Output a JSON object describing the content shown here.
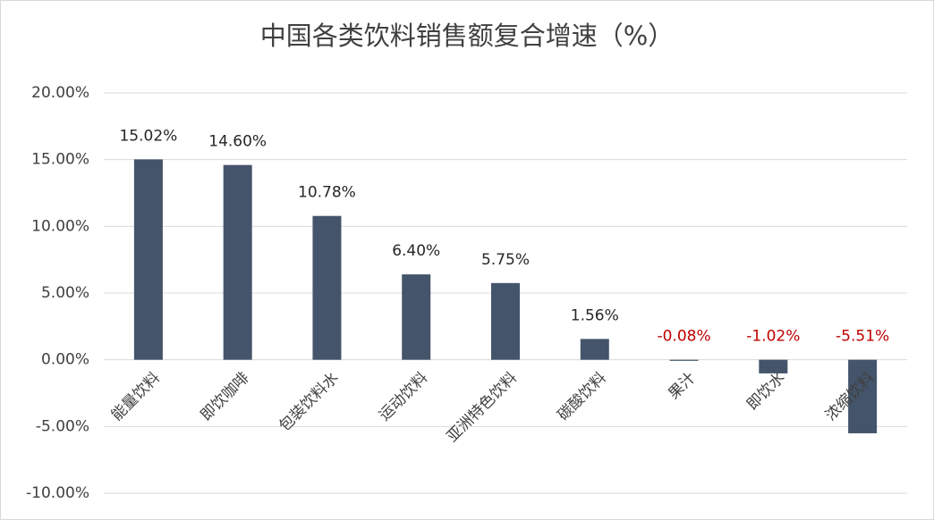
{
  "chart_data": {
    "type": "bar",
    "title": "中国各类饮料销售额复合增速（%）",
    "categories": [
      "能量饮料",
      "即饮咖啡",
      "包装饮料水",
      "运动饮料",
      "亚洲特色饮料",
      "碳酸饮料",
      "果汁",
      "即饮水",
      "浓缩饮料"
    ],
    "values": [
      15.02,
      14.6,
      10.78,
      6.4,
      5.75,
      1.56,
      -0.08,
      -1.02,
      -5.51
    ],
    "value_labels": [
      "15.02%",
      "14.60%",
      "10.78%",
      "6.40%",
      "5.75%",
      "1.56%",
      "-0.08%",
      "-1.02%",
      "-5.51%"
    ],
    "color": "#44546a",
    "label_color": "#262626",
    "negative_label_color": "#c00000",
    "ylim": [
      -10,
      20
    ],
    "yticks": [
      {
        "value": -10,
        "label": "-10.00%"
      },
      {
        "value": -5,
        "label": "-5.00%"
      },
      {
        "value": 0,
        "label": "0.00%"
      },
      {
        "value": 5,
        "label": "5.00%"
      },
      {
        "value": 10,
        "label": "10.00%"
      },
      {
        "value": 15,
        "label": "15.00%"
      },
      {
        "value": 20,
        "label": "20.00%"
      }
    ],
    "grid": true
  }
}
